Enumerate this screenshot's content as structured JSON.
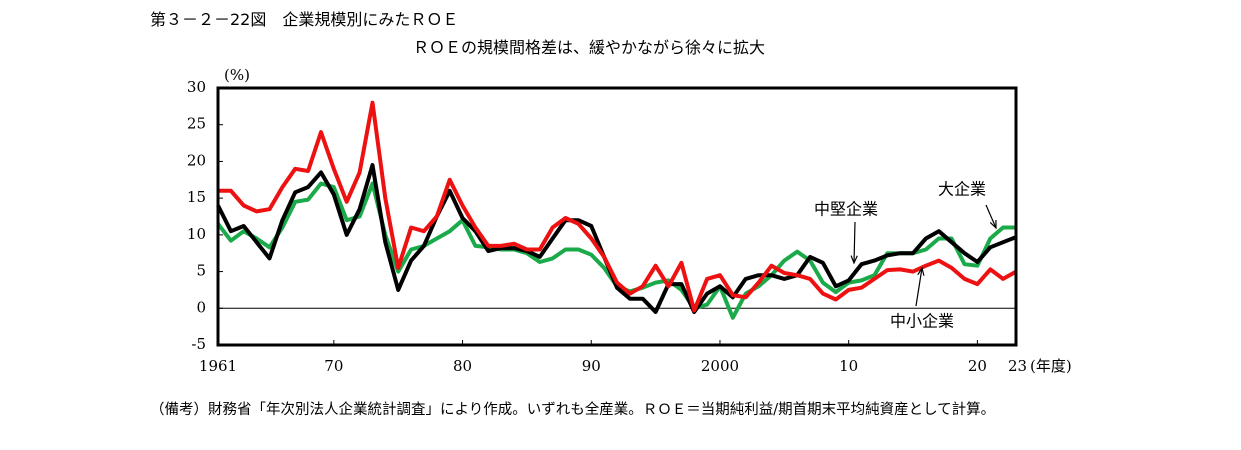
{
  "chart_data": {
    "type": "line",
    "title": "第３－２－22図　企業規模別にみたＲＯＥ",
    "subtitle": "ＲＯＥの規模間格差は、緩やかながら徐々に拡大",
    "y_label": "(%)",
    "x_label": "(年度)",
    "note": "（備考）財務省「年次別法人企業統計調査」により作成。いずれも全産業。ＲＯＥ＝当期純利益/期首期末平均純資産として計算。",
    "x": [
      1961,
      1962,
      1963,
      1964,
      1965,
      1966,
      1967,
      1968,
      1969,
      1970,
      1971,
      1972,
      1973,
      1974,
      1975,
      1976,
      1977,
      1978,
      1979,
      1980,
      1981,
      1982,
      1983,
      1984,
      1985,
      1986,
      1987,
      1988,
      1989,
      1990,
      1991,
      1992,
      1993,
      1994,
      1995,
      1996,
      1997,
      1998,
      1999,
      2000,
      2001,
      2002,
      2003,
      2004,
      2005,
      2006,
      2007,
      2008,
      2009,
      2010,
      2011,
      2012,
      2013,
      2014,
      2015,
      2016,
      2017,
      2018,
      2019,
      2020,
      2021,
      2022,
      2023
    ],
    "xlim": [
      1961,
      2023
    ],
    "xticks": [
      1961,
      {
        "value": 1970,
        "label": "70"
      },
      {
        "value": 1980,
        "label": "80"
      },
      {
        "value": 1990,
        "label": "90"
      },
      2000,
      {
        "value": 2010,
        "label": "10"
      },
      {
        "value": 2020,
        "label": "20"
      },
      {
        "value": 2023,
        "label": "23"
      }
    ],
    "ylim": [
      -5,
      30
    ],
    "yticks": [
      -5,
      0,
      5,
      10,
      15,
      20,
      25,
      30
    ],
    "series": [
      {
        "name": "大企業",
        "color": "#1aaa4a",
        "values": [
          11.5,
          9.2,
          10.5,
          9.5,
          8.3,
          11,
          14.5,
          14.8,
          17,
          16.5,
          12,
          12.5,
          17,
          10,
          5,
          8,
          8.5,
          9.5,
          10.5,
          12,
          8.5,
          8.3,
          8,
          8,
          7.5,
          6.3,
          6.8,
          8,
          8,
          7.3,
          5.5,
          3,
          2.3,
          2.8,
          3.5,
          3.8,
          2.5,
          0,
          0.5,
          3,
          -1.3,
          2,
          3,
          4.5,
          6.5,
          7.7,
          6.5,
          3.5,
          2.2,
          3.5,
          3.8,
          4.5,
          7.5,
          7.5,
          7.5,
          8,
          9.5,
          9.5,
          6,
          5.8,
          9.5,
          11,
          11
        ]
      },
      {
        "name": "中堅企業",
        "color": "#000000",
        "values": [
          14,
          10.5,
          11.2,
          9,
          6.8,
          12,
          15.8,
          16.5,
          18.5,
          15.5,
          10,
          13.5,
          19.5,
          9,
          2.5,
          6.5,
          8.5,
          12.5,
          16,
          12.3,
          10.5,
          7.8,
          8.2,
          8.2,
          7.8,
          7,
          9.5,
          12,
          12,
          11.2,
          7,
          2.8,
          1.3,
          1.3,
          -0.5,
          3.3,
          3.3,
          -0.5,
          2,
          3,
          1.5,
          4,
          4.5,
          4.5,
          4,
          4.5,
          7,
          6.2,
          3,
          3.8,
          6,
          6.5,
          7.2,
          7.5,
          7.5,
          9.5,
          10.5,
          9,
          7.5,
          6.3,
          8.3,
          9,
          9.7
        ]
      },
      {
        "name": "中小企業",
        "color": "#ee1111",
        "values": [
          16,
          16,
          14,
          13.2,
          13.5,
          16.5,
          19,
          18.7,
          24,
          19,
          14.5,
          18.5,
          28,
          15,
          5.5,
          11,
          10.5,
          12.5,
          17.5,
          14,
          11,
          8.5,
          8.5,
          8.8,
          8,
          8,
          11,
          12.3,
          11.5,
          9.5,
          7,
          3.5,
          2,
          3,
          5.8,
          3,
          6.2,
          -0.3,
          4,
          4.5,
          1.8,
          1.5,
          3.5,
          5.8,
          4.8,
          4.5,
          4,
          2,
          1.2,
          2.5,
          2.8,
          4,
          5.2,
          5.3,
          5,
          5.8,
          6.5,
          5.5,
          4,
          3.3,
          5.3,
          4,
          5
        ]
      }
    ]
  }
}
